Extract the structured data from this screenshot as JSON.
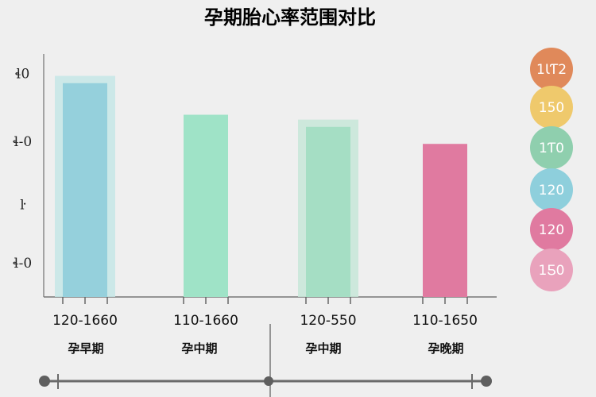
{
  "chart_data": {
    "type": "bar",
    "title": "孕期胎心率范围对比",
    "xlabel": "",
    "ylabel": "",
    "ylim": [
      0,
      100
    ],
    "y_ticks": [
      {
        "label": "ɬ0",
        "value": 92
      },
      {
        "label": "ɬ-0",
        "value": 64
      },
      {
        "label": "ŀ",
        "value": 38
      },
      {
        "label": "ɬ-0",
        "value": 14
      }
    ],
    "categories": [
      "孕早期",
      "孕中期",
      "孕中期",
      "孕晚期"
    ],
    "range_labels": [
      "120-1660",
      "110-1660",
      "120-550",
      "110-1650"
    ],
    "values": [
      88,
      75,
      70,
      63
    ],
    "halo_values": [
      91,
      null,
      73,
      null
    ],
    "colors": [
      "#95d0dc",
      "#9fe3c7",
      "#a5dec4",
      "#e07aa0"
    ],
    "halo_colors": [
      "#c5e6e6",
      null,
      "#c7e6d8",
      null
    ],
    "legend": [
      {
        "label": "1ƖƬ2",
        "color": "#e0895a"
      },
      {
        "label": "150",
        "color": "#efc96c"
      },
      {
        "label": "1Ƭ0",
        "color": "#8fcfae"
      },
      {
        "label": "120",
        "color": "#8ecfdc"
      },
      {
        "label": "120",
        "color": "#e07aa0"
      },
      {
        "label": "1Ƽ0",
        "color": "#e9a2bc"
      }
    ]
  }
}
